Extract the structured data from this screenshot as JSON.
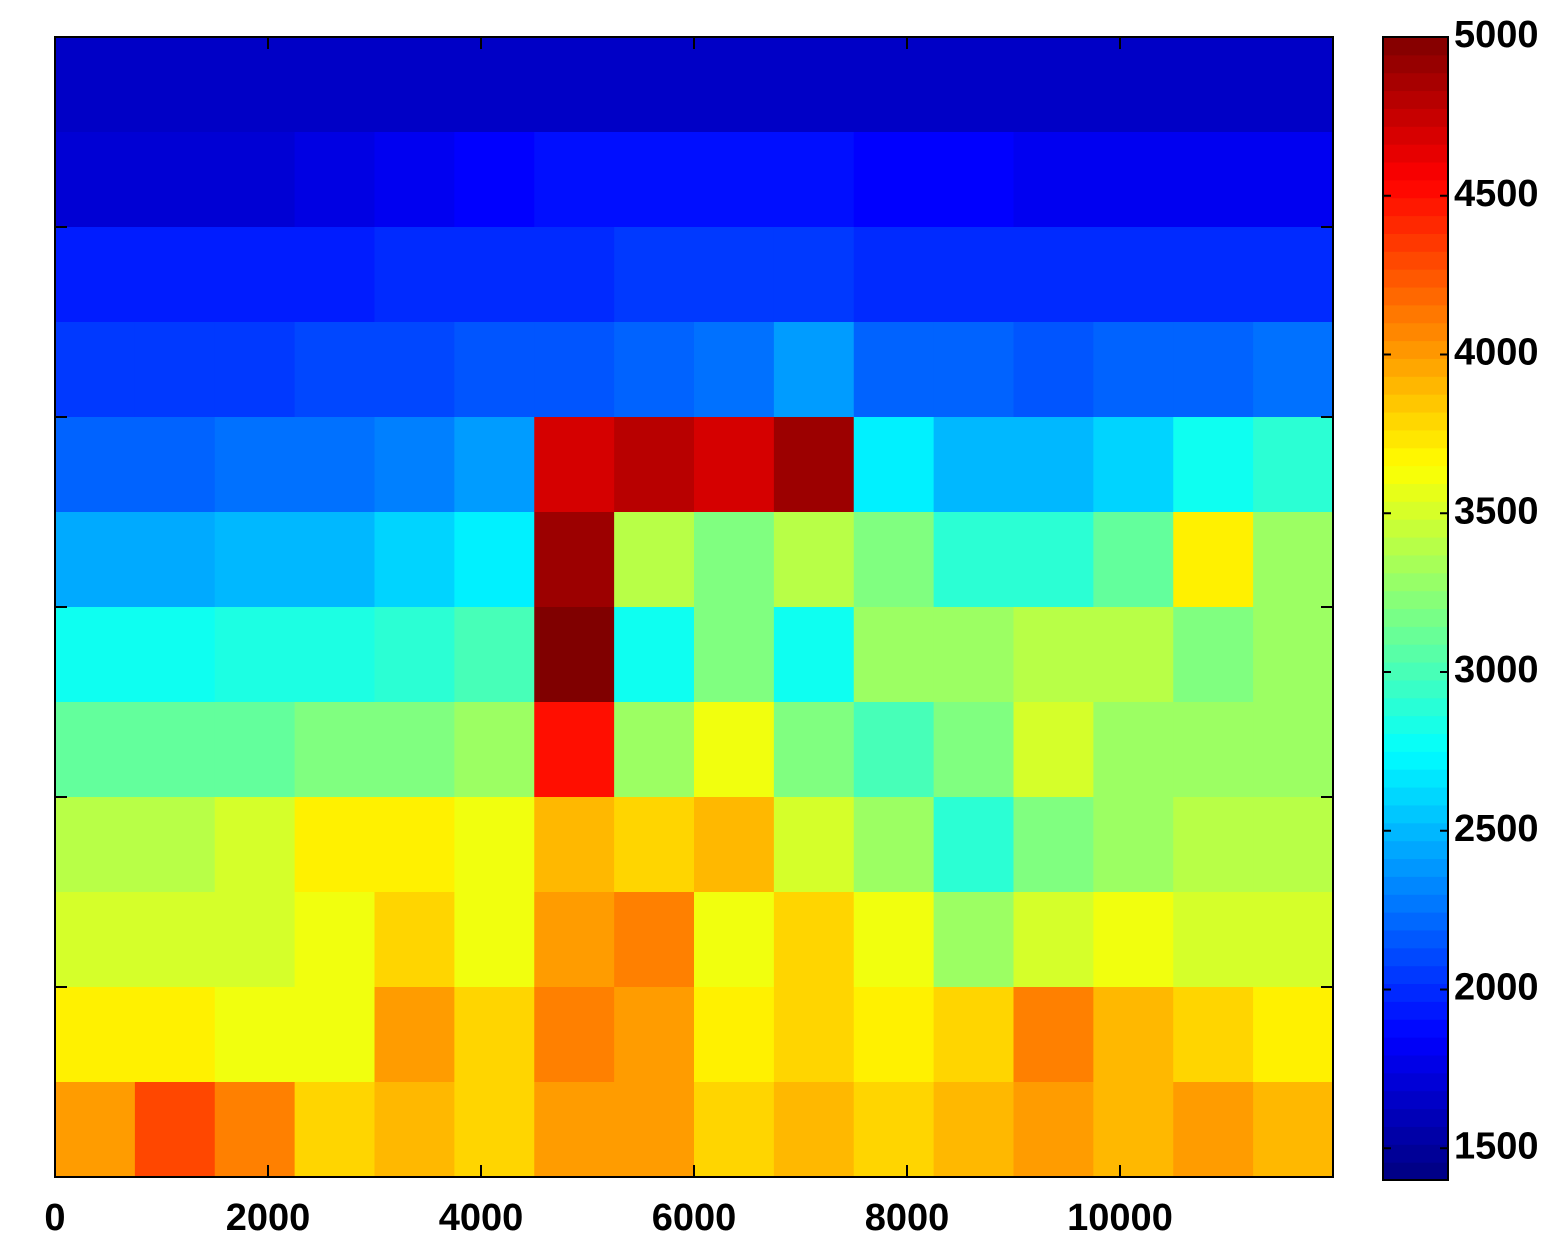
{
  "chart_data": {
    "type": "heatmap",
    "colormap": "jet",
    "xlim": [
      0,
      12000
    ],
    "xticks": [
      0,
      2000,
      4000,
      6000,
      8000,
      10000
    ],
    "clim": [
      1400,
      5000
    ],
    "cticks": [
      1500,
      2000,
      2500,
      3000,
      3500,
      4000,
      4500,
      5000
    ],
    "values": [
      [
        1650,
        1650,
        1650,
        1650,
        1650,
        1650,
        1650,
        1650,
        1650,
        1650,
        1650,
        1650,
        1650,
        1650,
        1650,
        1650
      ],
      [
        1700,
        1700,
        1700,
        1750,
        1800,
        1850,
        1900,
        1900,
        1900,
        1900,
        1850,
        1850,
        1800,
        1800,
        1800,
        1800
      ],
      [
        1950,
        1950,
        1950,
        1950,
        2000,
        2000,
        2000,
        2050,
        2050,
        2050,
        2000,
        2000,
        2000,
        2000,
        2000,
        2000
      ],
      [
        2050,
        2050,
        2050,
        2100,
        2100,
        2150,
        2150,
        2200,
        2250,
        2400,
        2200,
        2200,
        2150,
        2200,
        2200,
        2250
      ],
      [
        2200,
        2200,
        2250,
        2250,
        2300,
        2400,
        4700,
        4800,
        4700,
        4900,
        2700,
        2500,
        2500,
        2600,
        2800,
        2900
      ],
      [
        2450,
        2450,
        2500,
        2500,
        2600,
        2700,
        4900,
        3400,
        3200,
        3400,
        3200,
        2900,
        2900,
        3100,
        3700,
        3300
      ],
      [
        2800,
        2800,
        2850,
        2850,
        2900,
        3000,
        5000,
        2800,
        3200,
        2800,
        3300,
        3300,
        3400,
        3400,
        3200,
        3300
      ],
      [
        3100,
        3100,
        3100,
        3200,
        3200,
        3300,
        4500,
        3300,
        3600,
        3200,
        3000,
        3200,
        3500,
        3300,
        3300,
        3300
      ],
      [
        3400,
        3400,
        3500,
        3700,
        3700,
        3600,
        3900,
        3800,
        3900,
        3500,
        3300,
        2900,
        3200,
        3300,
        3400,
        3400
      ],
      [
        3500,
        3500,
        3500,
        3600,
        3800,
        3600,
        4000,
        4100,
        3600,
        3800,
        3600,
        3300,
        3500,
        3600,
        3500,
        3500
      ],
      [
        3700,
        3700,
        3600,
        3600,
        4000,
        3800,
        4100,
        4000,
        3700,
        3800,
        3700,
        3800,
        4100,
        3900,
        3800,
        3700
      ],
      [
        4000,
        4300,
        4100,
        3800,
        3900,
        3800,
        4000,
        4000,
        3800,
        3900,
        3800,
        3900,
        4000,
        3900,
        4000,
        3900
      ]
    ]
  }
}
